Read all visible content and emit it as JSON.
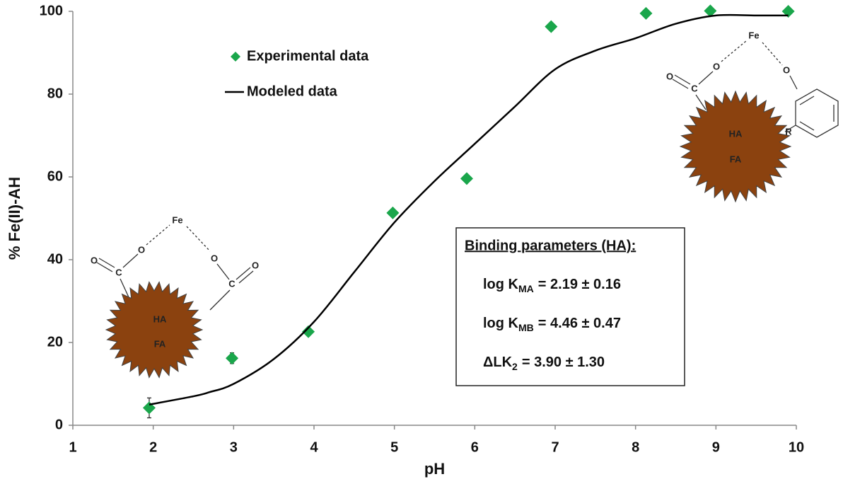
{
  "chart_data": {
    "type": "scatter",
    "xlabel": "pH",
    "ylabel": "% Fe(II)-AH",
    "xlim": [
      1,
      10
    ],
    "ylim": [
      0,
      100
    ],
    "xticks": [
      1,
      2,
      3,
      4,
      5,
      6,
      7,
      8,
      9,
      10
    ],
    "yticks": [
      0,
      20,
      40,
      60,
      80,
      100
    ],
    "grid": false,
    "legend": "upper left",
    "series": [
      {
        "name": "Experimental data",
        "color": "#1aa64b",
        "mode": "markers",
        "marker": "diamond",
        "x": [
          1.95,
          2.98,
          3.93,
          4.98,
          5.9,
          6.95,
          8.13,
          8.93,
          9.9
        ],
        "values": [
          4.2,
          16.2,
          22.6,
          51.3,
          59.6,
          96.3,
          99.5,
          100.1,
          100
        ],
        "errors": [
          2.4,
          1.3,
          null,
          null,
          null,
          null,
          null,
          null,
          null
        ]
      },
      {
        "name": "Modeled data",
        "color": "#000000",
        "mode": "line",
        "x": [
          1.95,
          2.5,
          2.7,
          3,
          3.5,
          4,
          4.5,
          5,
          5.5,
          6,
          6.5,
          7,
          7.5,
          8,
          8.5,
          9,
          9.5,
          9.9
        ],
        "values": [
          5,
          7,
          8,
          10,
          16,
          25,
          37,
          49,
          59,
          68,
          77,
          86,
          90.5,
          93.5,
          97,
          99,
          99,
          99
        ]
      }
    ],
    "binding_box": {
      "title": "Binding parameters (HA):",
      "lines": [
        {
          "text": "log K",
          "sub": "MA",
          "rest": "= 2.19 ± 0.16"
        },
        {
          "text": "log K",
          "sub": "MB",
          "rest": "= 4.46 ± 0.47"
        },
        {
          "text": "ΔLK",
          "sub": "2",
          "rest": "= 3.90 ± 1.30"
        }
      ]
    },
    "diagrams": [
      {
        "labels": [
          "Fe",
          "O",
          "O",
          "O",
          "C",
          "C",
          "O",
          "HA",
          "FA"
        ]
      },
      {
        "labels": [
          "Fe",
          "O",
          "O",
          "O",
          "C",
          "HA",
          "FA",
          "R"
        ]
      }
    ]
  }
}
